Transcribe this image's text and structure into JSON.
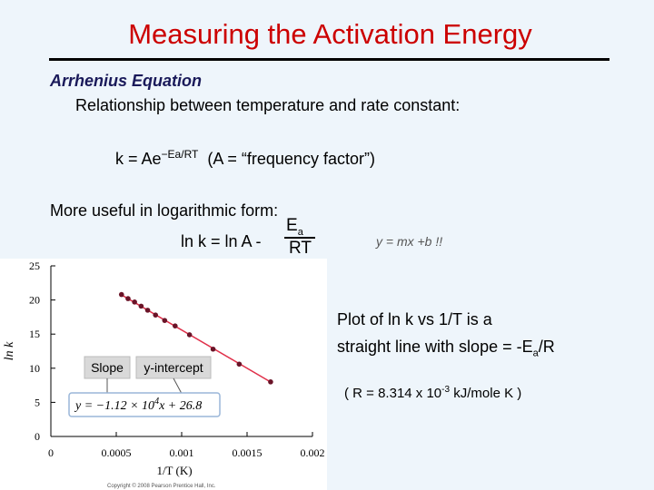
{
  "slide": {
    "title": "Measuring the Activation Energy",
    "subhead": "Arrhenius Equation",
    "line1": "Relationship between temperature and rate constant:",
    "eq_k": "k = Ae",
    "eq_exp": "−Ea/RT",
    "eq_note": "(A = “frequency factor”)",
    "line2": "More useful in logarithmic form:",
    "ln_eq": "ln k = ln A -",
    "frac_num": "E",
    "frac_num_sub": "a",
    "frac_den": "RT",
    "ymx": "y = mx +b !!",
    "note_line1": "Plot of ln k vs 1/T is a",
    "note_line2_pre": "straight line with slope = -E",
    "note_line2_sub": "a",
    "note_line2_post": "/R",
    "r_pre": "( R = 8.314 x 10",
    "r_exp": "-3",
    "r_post": " kJ/mole K )"
  },
  "chart_data": {
    "type": "scatter",
    "xlabel": "1/T (K)",
    "ylabel": "ln k",
    "xlim": [
      0,
      0.002
    ],
    "ylim": [
      0,
      25
    ],
    "x_ticks": [
      "0",
      "0.0005",
      "0.001",
      "0.0015",
      "0.002"
    ],
    "y_ticks": [
      "0",
      "5",
      "10",
      "15",
      "20",
      "25"
    ],
    "points": [
      {
        "x": 0.00054,
        "y": 20.8
      },
      {
        "x": 0.00059,
        "y": 20.2
      },
      {
        "x": 0.00064,
        "y": 19.7
      },
      {
        "x": 0.00069,
        "y": 19.1
      },
      {
        "x": 0.00074,
        "y": 18.5
      },
      {
        "x": 0.0008,
        "y": 17.8
      },
      {
        "x": 0.00087,
        "y": 17.0
      },
      {
        "x": 0.00095,
        "y": 16.2
      },
      {
        "x": 0.00106,
        "y": 14.9
      },
      {
        "x": 0.00124,
        "y": 12.8
      },
      {
        "x": 0.00144,
        "y": 10.6
      },
      {
        "x": 0.00168,
        "y": 8.0
      }
    ],
    "fit_line": {
      "slope": -11200,
      "intercept": 26.8
    },
    "annotations": {
      "slope_label": "Slope",
      "intercept_label": "y-intercept",
      "equation_prefix": "y = −1.12 × 10",
      "equation_exp": "4",
      "equation_suffix": "x + 26.8"
    },
    "copyright": "Copyright © 2008 Pearson Prentice Hall, Inc."
  }
}
